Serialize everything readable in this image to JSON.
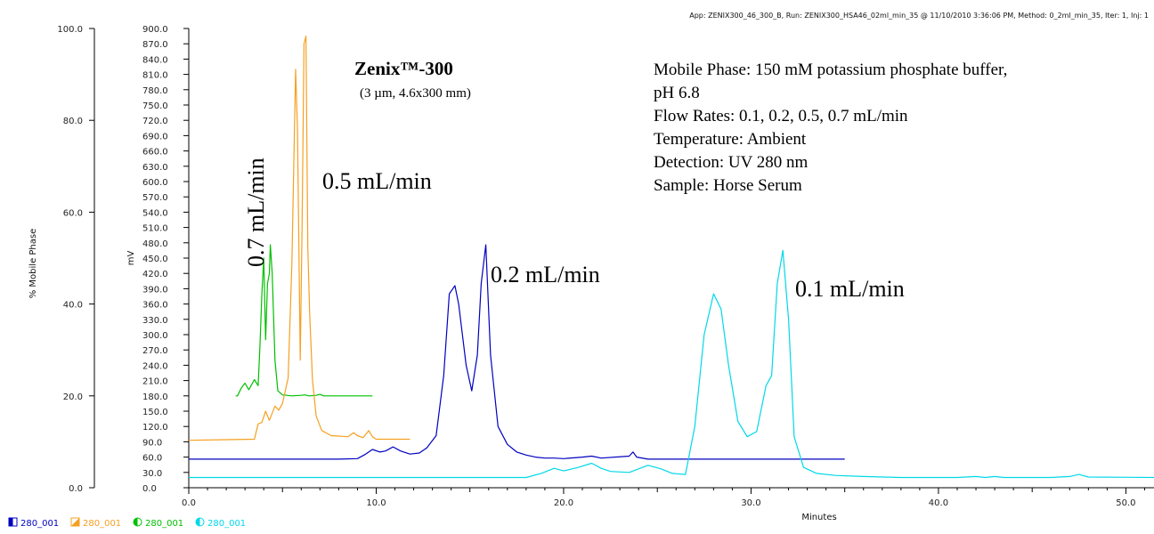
{
  "header": "App: ZENIX300_46_300_B, Run: ZENIX300_HSA46_02ml_min_35 @ 11/10/2010 3:36:06 PM, Method: 0_2ml_min_35, Iter: 1, Inj: 1",
  "product": {
    "name": "Zenix™-300",
    "spec": "(3 µm, 4.6x300 mm)"
  },
  "conditions": [
    "Mobile Phase: 150 mM potassium phosphate buffer,",
    "pH 6.8",
    "Flow Rates: 0.1, 0.2, 0.5, 0.7 mL/min",
    "Temperature: Ambient",
    "Detection: UV 280 nm",
    "Sample: Horse Serum"
  ],
  "legend": [
    {
      "label": "280_001",
      "color": "#0000c0",
      "icon": "half-filled-square-icon"
    },
    {
      "label": "280_001",
      "color": "#f5a020",
      "icon": "triangle-square-icon"
    },
    {
      "label": "280_001",
      "color": "#00c000",
      "icon": "half-filled-circle-icon"
    },
    {
      "label": "280_001",
      "color": "#00d8e8",
      "icon": "half-filled-circle-icon"
    }
  ],
  "chart_data": {
    "type": "line",
    "xlabel": "Minutes",
    "ylabel_left": "% Mobile Phase",
    "ylabel_right": "mV",
    "xlim": [
      0,
      51.5
    ],
    "ylim_left": [
      0,
      100
    ],
    "ylim_right": [
      0,
      900
    ],
    "x_ticks": [
      "0.0",
      "10.0",
      "20.0",
      "30.0",
      "40.0",
      "50.0"
    ],
    "y_ticks_left": [
      "0.0",
      "20.0",
      "40.0",
      "60.0",
      "80.0",
      "100.0"
    ],
    "y_ticks_right": [
      "0.0",
      "30.0",
      "60.0",
      "90.0",
      "120.0",
      "150.0",
      "180.0",
      "210.0",
      "240.0",
      "270.0",
      "300.0",
      "330.0",
      "360.0",
      "390.0",
      "420.0",
      "450.0",
      "480.0",
      "510.0",
      "540.0",
      "570.0",
      "600.0",
      "630.0",
      "660.0",
      "690.0",
      "720.0",
      "750.0",
      "780.0",
      "810.0",
      "840.0",
      "870.0",
      "900.0"
    ],
    "series": [
      {
        "name": "0.7 mL/min",
        "color": "#00c000",
        "x": [
          2.5,
          2.6,
          2.8,
          3.0,
          3.2,
          3.5,
          3.7,
          3.8,
          3.9,
          4.0,
          4.1,
          4.2,
          4.3,
          4.35,
          4.45,
          4.6,
          4.75,
          5.0,
          5.5,
          6.0,
          6.2,
          6.4,
          6.8,
          7.0,
          7.2,
          8.0,
          9.8
        ],
        "y": [
          180,
          180,
          195,
          205,
          192,
          212,
          200,
          280,
          380,
          450,
          290,
          400,
          420,
          476,
          420,
          250,
          190,
          182,
          180,
          181,
          182,
          180,
          181,
          183,
          180,
          180,
          180
        ]
      },
      {
        "name": "0.5 mL/min",
        "color": "#f5a020",
        "x": [
          0.0,
          3.5,
          3.7,
          3.9,
          4.1,
          4.3,
          4.6,
          4.8,
          5.0,
          5.3,
          5.5,
          5.7,
          5.8,
          5.95,
          6.05,
          6.15,
          6.25,
          6.35,
          6.45,
          6.6,
          6.8,
          7.1,
          7.6,
          8.5,
          8.8,
          9.0,
          9.3,
          9.6,
          9.8,
          10.0,
          11.8
        ],
        "y": [
          93,
          95,
          125,
          128,
          150,
          132,
          160,
          152,
          165,
          215,
          440,
          820,
          700,
          250,
          520,
          870,
          885,
          470,
          340,
          212,
          140,
          112,
          102,
          100,
          108,
          102,
          98,
          112,
          100,
          95,
          95
        ]
      },
      {
        "name": "0.2 mL/min",
        "color": "#0000c0",
        "x": [
          0.0,
          5.0,
          8.0,
          9.0,
          9.4,
          9.8,
          10.2,
          10.5,
          10.9,
          11.3,
          11.8,
          12.3,
          12.7,
          13.2,
          13.6,
          13.9,
          14.2,
          14.4,
          14.8,
          15.1,
          15.4,
          15.6,
          15.85,
          16.1,
          16.5,
          17.0,
          17.5,
          18.0,
          18.5,
          19.0,
          19.5,
          20.0,
          21.0,
          21.5,
          22.0,
          23.5,
          23.7,
          23.9,
          24.5,
          26.0,
          30.0,
          35.0
        ],
        "y": [
          56,
          56,
          56,
          57,
          65,
          75,
          70,
          72,
          80,
          72,
          66,
          68,
          78,
          102,
          220,
          380,
          396,
          360,
          240,
          190,
          260,
          400,
          476,
          260,
          120,
          85,
          70,
          64,
          60,
          58,
          58,
          57,
          60,
          62,
          58,
          62,
          70,
          60,
          56,
          56,
          56,
          56
        ]
      },
      {
        "name": "0.1 mL/min",
        "color": "#00d8e8",
        "x": [
          0.0,
          10.0,
          18.0,
          18.8,
          19.5,
          20.0,
          20.8,
          21.5,
          22.0,
          22.5,
          23.5,
          24.5,
          25.2,
          25.8,
          26.5,
          27.0,
          27.5,
          28.0,
          28.4,
          28.8,
          29.3,
          29.8,
          30.3,
          30.8,
          31.1,
          31.4,
          31.7,
          32.0,
          32.3,
          32.8,
          33.5,
          34.5,
          36.0,
          38.0,
          41.0,
          42.0,
          42.5,
          43.0,
          43.5,
          46.0,
          47.0,
          47.5,
          48.0,
          51.5
        ],
        "y": [
          20,
          20,
          20,
          28,
          38,
          33,
          40,
          48,
          38,
          32,
          30,
          44,
          37,
          28,
          26,
          120,
          300,
          380,
          350,
          240,
          130,
          100,
          110,
          200,
          220,
          400,
          465,
          330,
          100,
          40,
          28,
          24,
          22,
          20,
          20,
          22,
          20,
          22,
          20,
          20,
          22,
          26,
          21,
          20
        ]
      }
    ],
    "annotations": [
      {
        "text": "0.7 mL/min",
        "rotated": true
      },
      {
        "text": "0.5 mL/min"
      },
      {
        "text": "0.2 mL/min"
      },
      {
        "text": "0.1 mL/min"
      }
    ]
  }
}
